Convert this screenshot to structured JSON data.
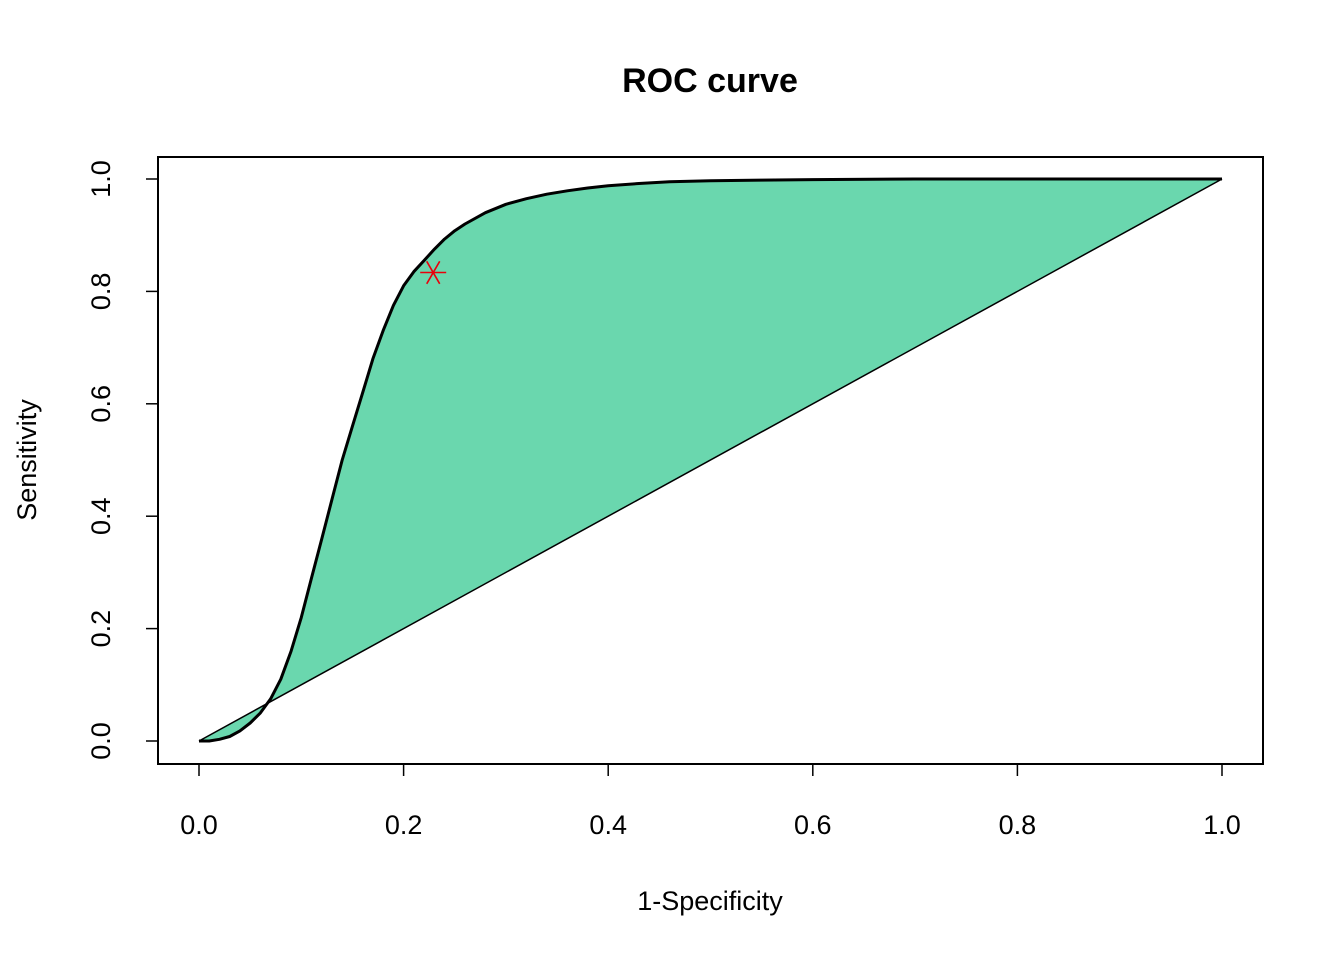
{
  "chart_data": {
    "type": "line",
    "title": "ROC curve",
    "xlabel": "1-Specificity",
    "ylabel": "Sensitivity",
    "xlim": [
      0,
      1
    ],
    "ylim": [
      0,
      1
    ],
    "x_ticks": [
      "0.0",
      "0.2",
      "0.4",
      "0.6",
      "0.8",
      "1.0"
    ],
    "y_ticks": [
      "0.0",
      "0.2",
      "0.4",
      "0.6",
      "0.8",
      "1.0"
    ],
    "grid": false,
    "legend": "none",
    "colors": {
      "fill": "#6AD7AE",
      "curve": "#000000",
      "reference_line": "#000000",
      "optimal_point": "#E8000B"
    },
    "series": [
      {
        "x": [
          0.0,
          0.01,
          0.02,
          0.03,
          0.04,
          0.05,
          0.06,
          0.07,
          0.08,
          0.09,
          0.1,
          0.11,
          0.12,
          0.13,
          0.14,
          0.15,
          0.16,
          0.17,
          0.18,
          0.19,
          0.2,
          0.21,
          0.22,
          0.23,
          0.24,
          0.25,
          0.26,
          0.28,
          0.3,
          0.32,
          0.34,
          0.36,
          0.38,
          0.4,
          0.43,
          0.46,
          0.5,
          0.55,
          0.6,
          0.7,
          0.8,
          0.9,
          1.0
        ],
        "y": [
          0.0,
          0.0,
          0.003,
          0.008,
          0.018,
          0.032,
          0.05,
          0.075,
          0.11,
          0.16,
          0.22,
          0.29,
          0.36,
          0.43,
          0.5,
          0.56,
          0.62,
          0.68,
          0.73,
          0.775,
          0.81,
          0.835,
          0.855,
          0.875,
          0.893,
          0.908,
          0.92,
          0.94,
          0.955,
          0.965,
          0.973,
          0.979,
          0.984,
          0.988,
          0.992,
          0.995,
          0.997,
          0.998,
          0.999,
          1.0,
          1.0,
          1.0,
          1.0
        ]
      },
      {
        "x": [
          0,
          1
        ],
        "y": [
          0,
          1
        ]
      }
    ],
    "optimal_point": {
      "x": 0.225,
      "y": 0.83
    }
  }
}
